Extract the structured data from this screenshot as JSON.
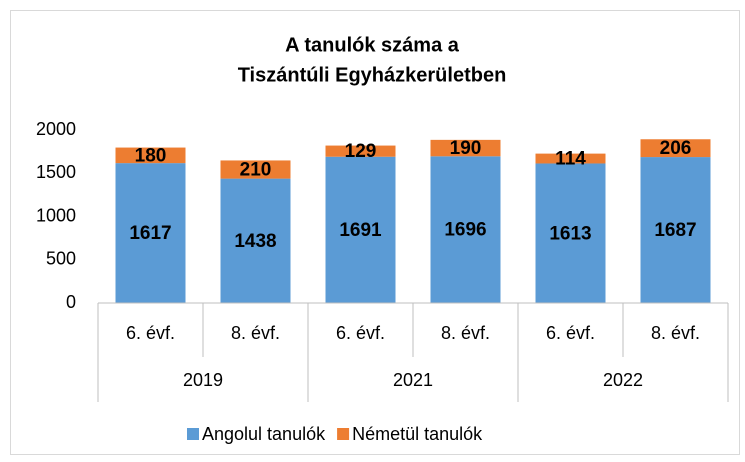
{
  "chart_data": {
    "type": "stacked_bar",
    "title": [
      "A tanulók száma a",
      "Tiszántúli Egyházkerületben"
    ],
    "groups": [
      "2019",
      "2021",
      "2022"
    ],
    "categories": [
      "6. évf.",
      "8. évf.",
      "6. évf.",
      "8. évf.",
      "6. évf.",
      "8. évf."
    ],
    "series": [
      {
        "name": "Angolul tanulók",
        "color": "#5b9bd5",
        "values": [
          1617,
          1438,
          1691,
          1696,
          1613,
          1687
        ]
      },
      {
        "name": "Németül tanulók",
        "color": "#ed7d31",
        "values": [
          180,
          210,
          129,
          190,
          114,
          206
        ]
      }
    ],
    "ylim": [
      0,
      2000
    ],
    "yticks": [
      0,
      500,
      1000,
      1500,
      2000
    ],
    "grid": false,
    "legend": "bottom"
  }
}
